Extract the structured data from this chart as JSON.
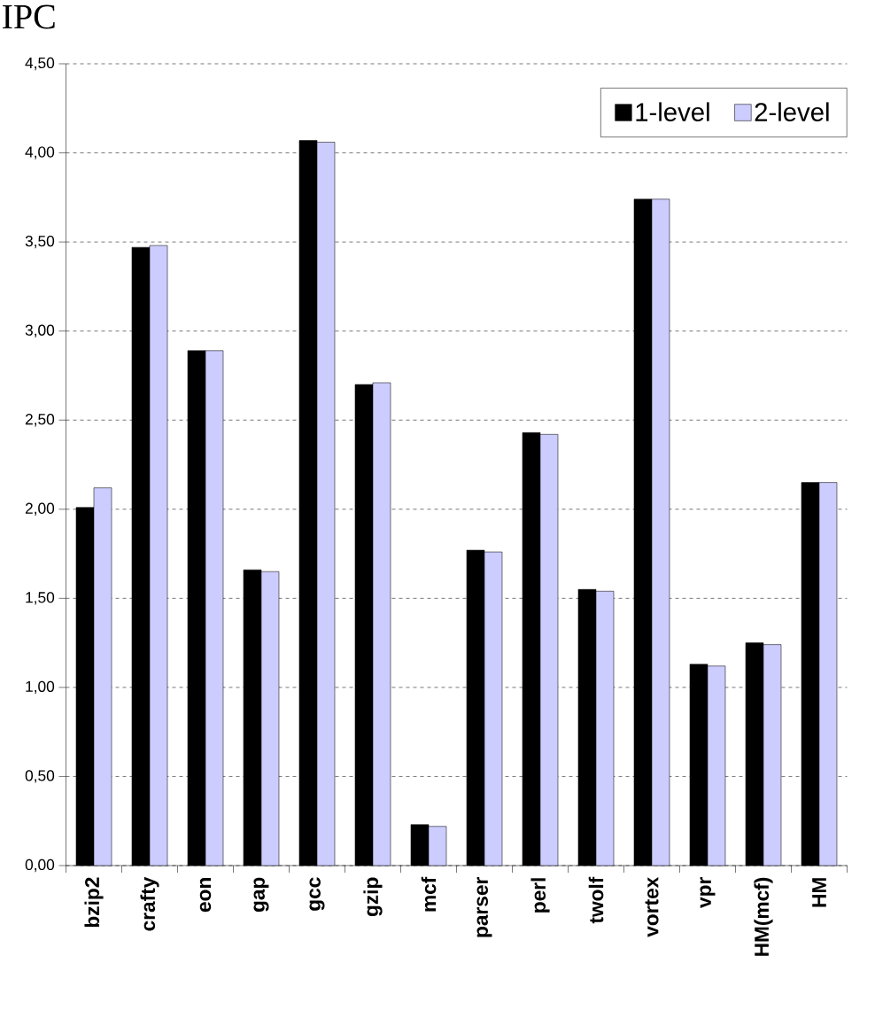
{
  "chart_data": {
    "type": "bar",
    "ylabel": "IPC",
    "categories": [
      "bzip2",
      "crafty",
      "eon",
      "gap",
      "gcc",
      "gzip",
      "mcf",
      "parser",
      "perl",
      "twolf",
      "vortex",
      "vpr",
      "HM(mcf)",
      "HM"
    ],
    "series": [
      {
        "name": "1-level",
        "color": "#000000",
        "values": [
          2.01,
          3.47,
          2.89,
          1.66,
          4.07,
          2.7,
          0.23,
          1.77,
          2.43,
          1.55,
          3.74,
          1.13,
          1.25,
          2.15
        ]
      },
      {
        "name": "2-level",
        "color": "#ccccff",
        "values": [
          2.12,
          3.48,
          2.89,
          1.65,
          4.06,
          2.71,
          0.22,
          1.76,
          2.42,
          1.54,
          3.74,
          1.12,
          1.24,
          2.15
        ]
      }
    ],
    "ylim": [
      0,
      4.5
    ],
    "yticks": [
      {
        "value": 0,
        "label": "0,00"
      },
      {
        "value": 0.5,
        "label": "0,50"
      },
      {
        "value": 1,
        "label": "1,00"
      },
      {
        "value": 1.5,
        "label": "1,50"
      },
      {
        "value": 2,
        "label": "2,00"
      },
      {
        "value": 2.5,
        "label": "2,50"
      },
      {
        "value": 3,
        "label": "3,00"
      },
      {
        "value": 3.5,
        "label": "3,50"
      },
      {
        "value": 4,
        "label": "4,00"
      },
      {
        "value": 4.5,
        "label": "4,50"
      }
    ],
    "grid": "y",
    "legend": "top right"
  }
}
